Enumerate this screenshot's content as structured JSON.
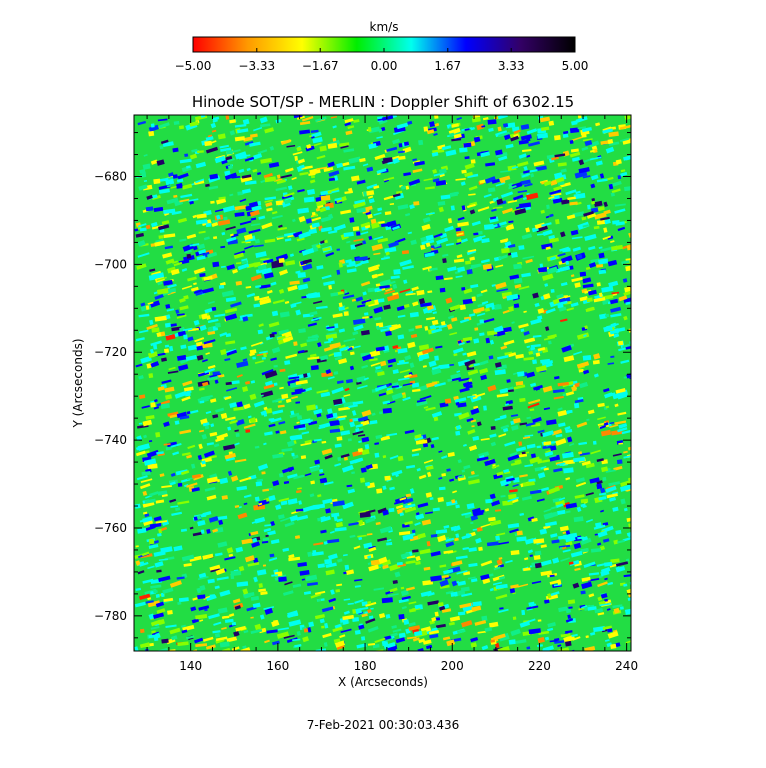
{
  "chart_data": {
    "type": "heatmap",
    "title": "Hinode SOT/SP - MERLIN : Doppler Shift of 6302.15",
    "xlabel": "X (Arcseconds)",
    "ylabel": "Y (Arcseconds)",
    "xlim": [
      127,
      241
    ],
    "ylim": [
      -788,
      -666
    ],
    "x_ticks": [
      140,
      160,
      180,
      200,
      220,
      240
    ],
    "x_tick_labels": [
      "140",
      "160",
      "180",
      "200",
      "220",
      "240"
    ],
    "y_ticks": [
      -680,
      -700,
      -720,
      -740,
      -760,
      -780
    ],
    "y_tick_labels": [
      "−680",
      "−700",
      "−720",
      "−740",
      "−760",
      "−780"
    ],
    "colorbar": {
      "label": "km/s",
      "range": [
        -5.0,
        5.0
      ],
      "ticks": [
        -5.0,
        -3.33,
        -1.67,
        0.0,
        1.67,
        3.33,
        5.0
      ],
      "tick_labels": [
        "−5.00",
        "−3.33",
        "−1.67",
        "0.00",
        "1.67",
        "3.33",
        "5.00"
      ],
      "colormap": [
        "#ff0000",
        "#ff9900",
        "#ffff00",
        "#00ee00",
        "#00ffee",
        "#0000ff",
        "#330066",
        "#000000"
      ]
    },
    "timestamp": "7-Feb-2021 00:30:03.436",
    "grid": false,
    "field_description_colors": {
      "dominant": "#22dd44",
      "secondary": [
        "#ffff00",
        "#00ffee",
        "#0000ff",
        "#ff9900"
      ]
    }
  }
}
